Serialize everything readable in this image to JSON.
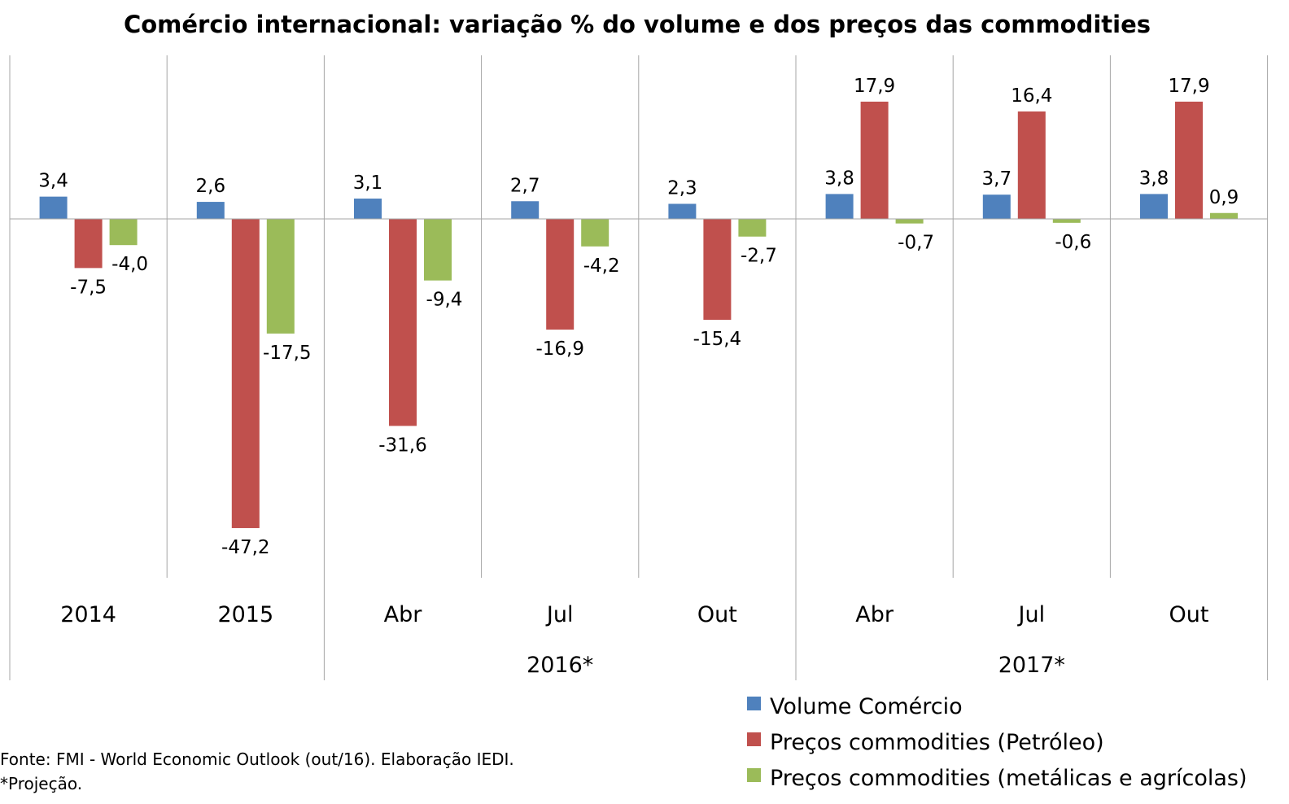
{
  "chart_data": {
    "type": "bar",
    "title": "Comércio internacional: variação % do volume e dos preços das commodities",
    "categories": [
      "2014",
      "2015",
      "Abr",
      "Jul",
      "Out",
      "Abr",
      "Jul",
      "Out"
    ],
    "category_groups": [
      {
        "label": "2016*",
        "start": 2,
        "end": 4
      },
      {
        "label": "2017*",
        "start": 5,
        "end": 7
      }
    ],
    "series": [
      {
        "name": "Volume Comércio",
        "color": "#4f81bd",
        "values": [
          3.4,
          2.6,
          3.1,
          2.7,
          2.3,
          3.8,
          3.7,
          3.8
        ],
        "labels": [
          "3,4",
          "2,6",
          "3,1",
          "2,7",
          "2,3",
          "3,8",
          "3,7",
          "3,8"
        ]
      },
      {
        "name": "Preços commodities (Petróleo)",
        "color": "#c0504d",
        "values": [
          -7.5,
          -47.2,
          -31.6,
          -16.9,
          -15.4,
          17.9,
          16.4,
          17.9
        ],
        "labels": [
          "-7,5",
          "-47,2",
          "-31,6",
          "-16,9",
          "-15,4",
          "17,9",
          "16,4",
          "17,9"
        ]
      },
      {
        "name": "Preços commodities (metálicas e agrícolas)",
        "color": "#9bbb59",
        "values": [
          -4.0,
          -17.5,
          -9.4,
          -4.2,
          -2.7,
          -0.7,
          -0.6,
          0.9
        ],
        "labels": [
          "-4,0",
          "-17,5",
          "-9,4",
          "-4,2",
          "-2,7",
          "-0,7",
          "-0,6",
          "0,9"
        ]
      }
    ],
    "ylim": [
      -55,
      25
    ],
    "grid": false,
    "legend_position": "bottom-right"
  },
  "notes": {
    "source": "Fonte: FMI - World Economic Outlook (out/16). Elaboração IEDI.",
    "projection": "*Projeção."
  }
}
